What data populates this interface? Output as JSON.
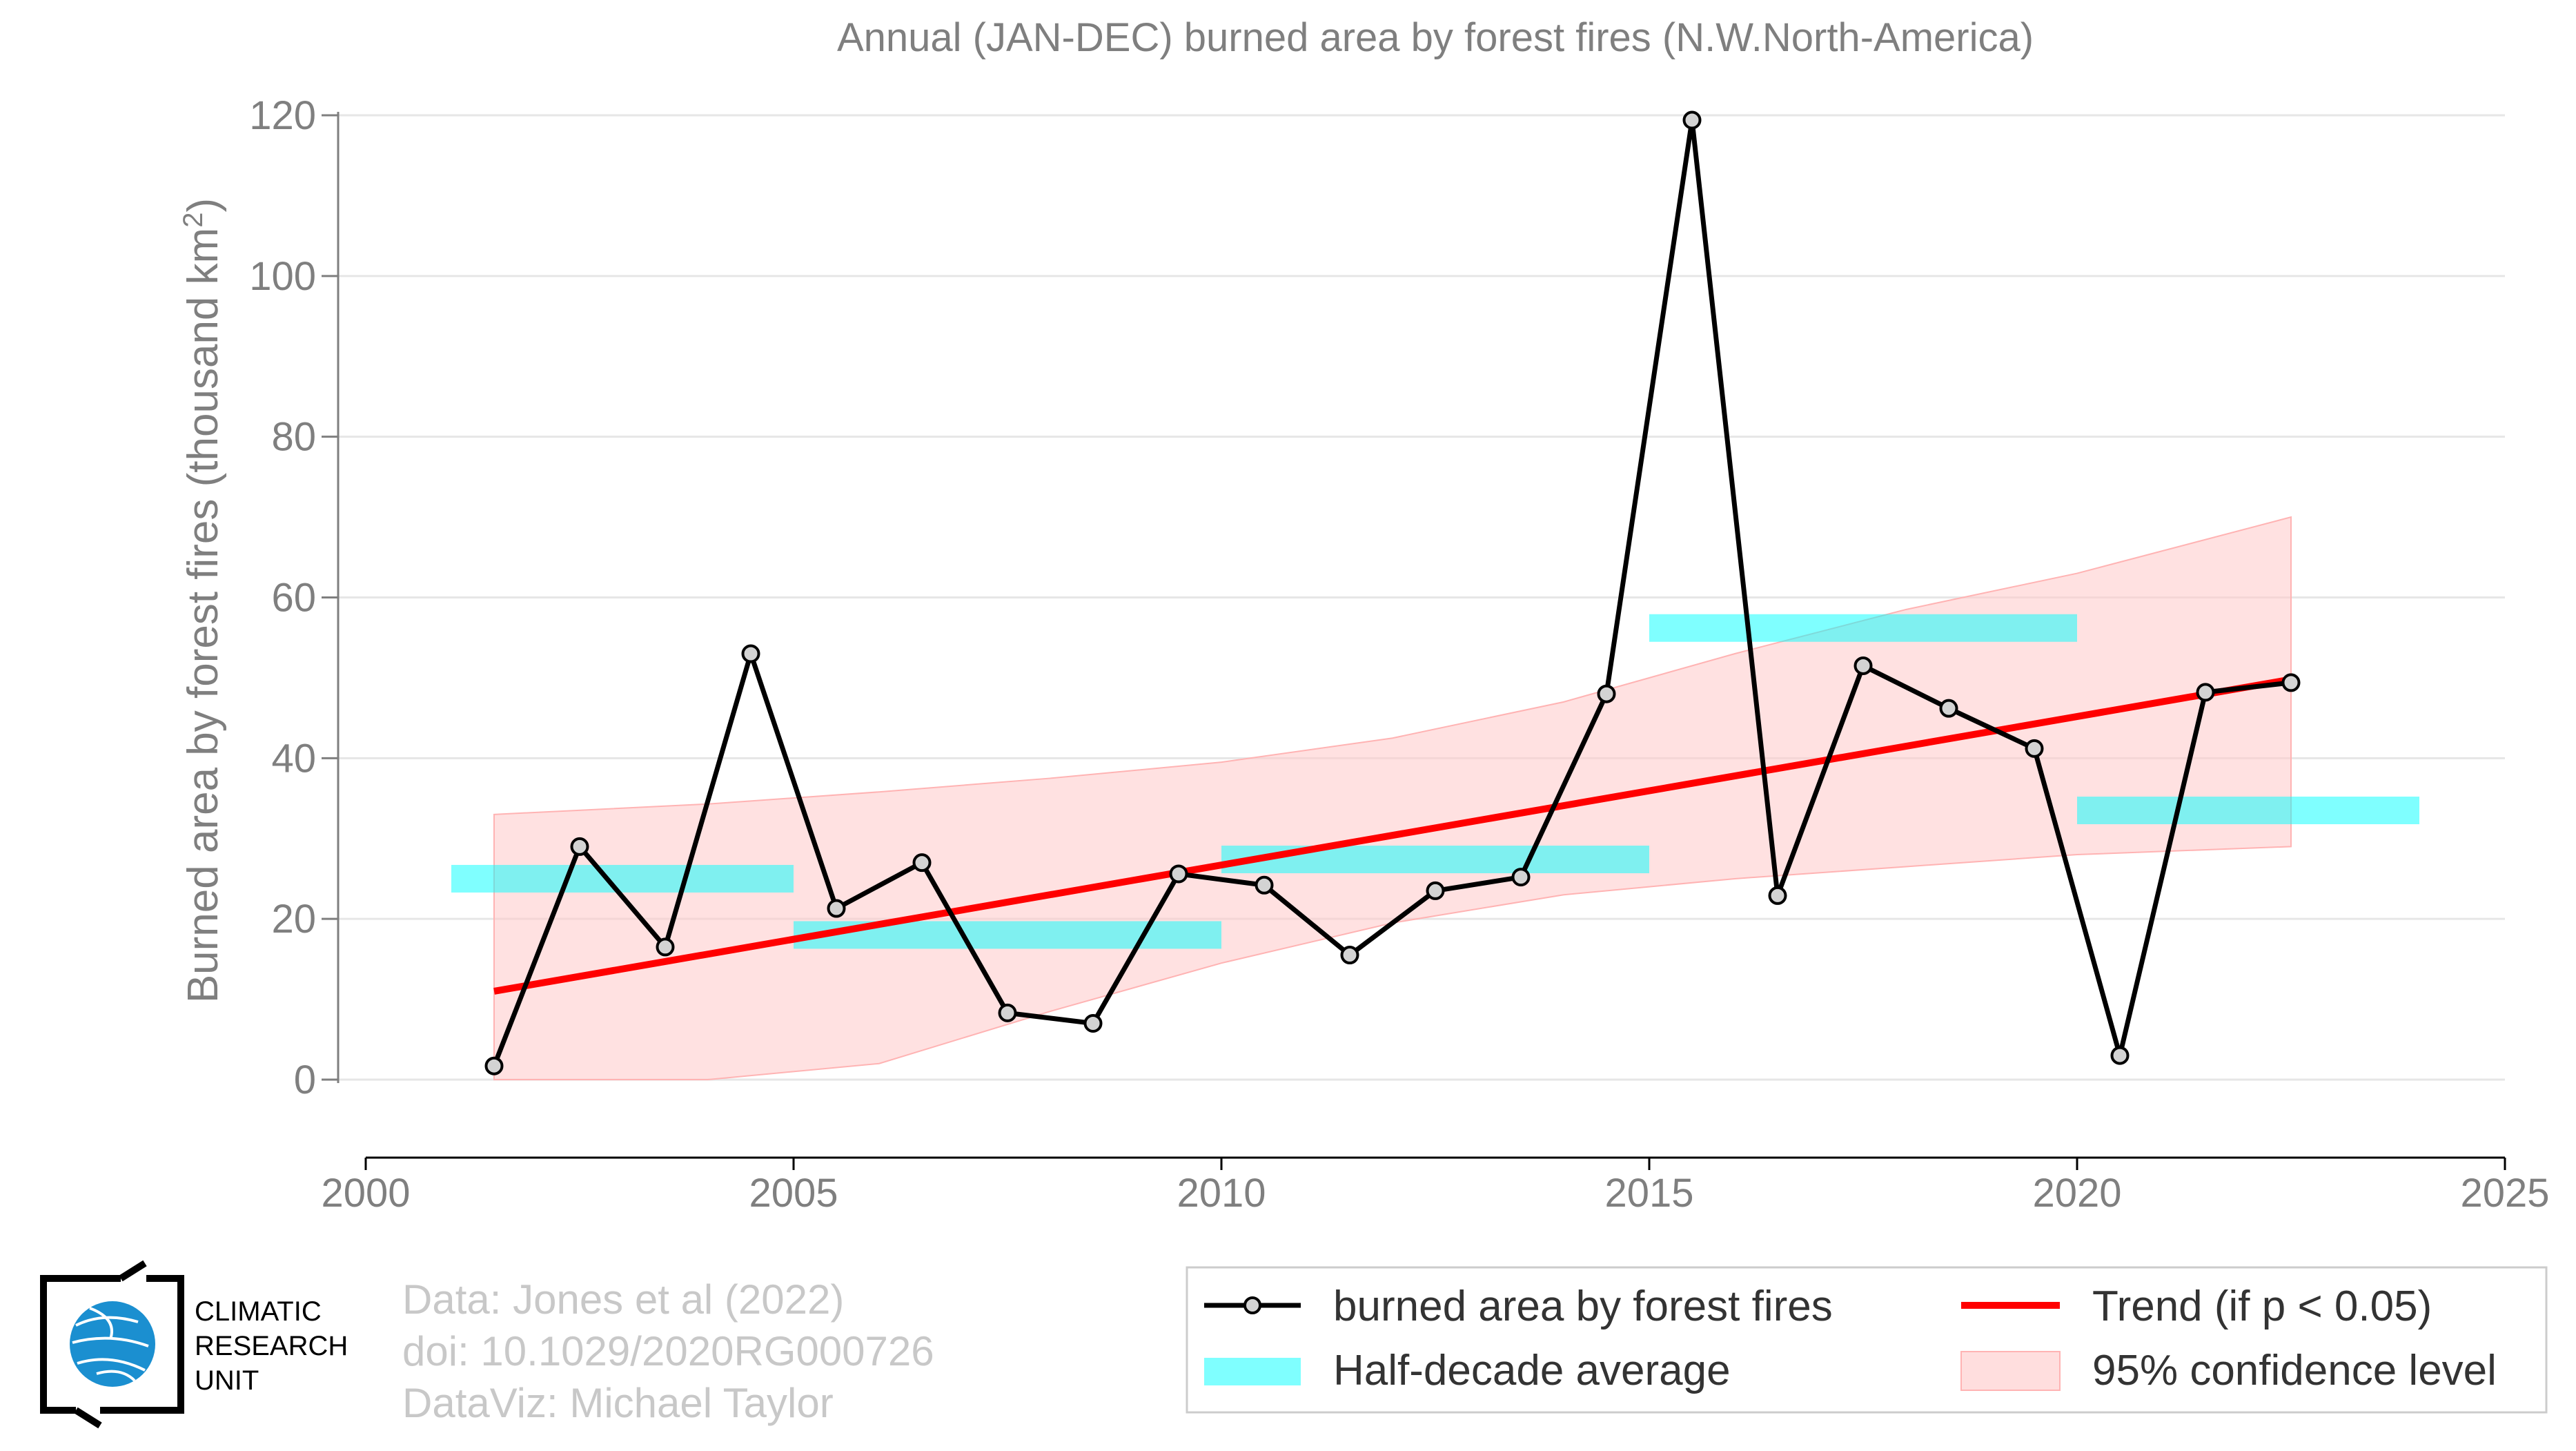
{
  "chart_data": {
    "type": "line",
    "title": "Annual (JAN-DEC) burned area by forest fires (N.W.North-America)",
    "ylabel": "Burned area by forest fires (thousand km",
    "ylabel_sup": "2",
    "ylabel_close": ")",
    "xlim": [
      2000,
      2025
    ],
    "ylim": [
      0,
      120
    ],
    "x_ticks": [
      2000,
      2005,
      2010,
      2015,
      2020,
      2025
    ],
    "y_ticks": [
      0,
      20,
      40,
      60,
      80,
      100,
      120
    ],
    "grid": "horizontal",
    "legend_placement": "bottom-right",
    "series": [
      {
        "name": "burned area by forest fires",
        "color": "#000000",
        "x": [
          2001.5,
          2002.5,
          2003.5,
          2004.5,
          2005.5,
          2006.5,
          2007.5,
          2008.5,
          2009.5,
          2010.5,
          2011.5,
          2012.5,
          2013.5,
          2014.5,
          2015.5,
          2016.5,
          2017.5,
          2018.5,
          2019.5,
          2020.5,
          2021.5,
          2022.5
        ],
        "values": [
          1.7,
          29.0,
          16.5,
          53.0,
          21.3,
          27.0,
          8.3,
          7.0,
          25.6,
          24.2,
          15.5,
          23.5,
          25.2,
          48.0,
          119.4,
          22.9,
          51.5,
          46.2,
          41.2,
          3.0,
          48.2,
          49.4
        ]
      },
      {
        "name": "Trend (if p < 0.05)",
        "color": "#ff0000",
        "x": [
          2001.5,
          2022.5
        ],
        "values": [
          11.0,
          49.8
        ]
      }
    ],
    "half_decade_average": {
      "name": "Half-decade average",
      "color": "#00ffff",
      "segments": [
        {
          "x_start": 2001,
          "x_end": 2005,
          "value": 25.0
        },
        {
          "x_start": 2005,
          "x_end": 2010,
          "value": 18.0
        },
        {
          "x_start": 2010,
          "x_end": 2015,
          "value": 27.4
        },
        {
          "x_start": 2015,
          "x_end": 2020,
          "value": 56.2
        },
        {
          "x_start": 2020,
          "x_end": 2024,
          "value": 33.5
        }
      ]
    },
    "confidence_band": {
      "name": "95% confidence level",
      "color": "#ffc8c8",
      "x": [
        2001.5,
        2004,
        2006,
        2008,
        2010,
        2012,
        2014,
        2016,
        2018,
        2020,
        2022.5
      ],
      "lower": [
        0.0,
        0.0,
        2.0,
        8.5,
        14.5,
        19.5,
        23.0,
        25.0,
        26.5,
        28.0,
        29.0
      ],
      "upper": [
        33.0,
        34.3,
        35.8,
        37.5,
        39.5,
        42.5,
        47.0,
        53.0,
        58.5,
        63.0,
        70.0
      ]
    },
    "legend": [
      {
        "label": "burned area by forest fires",
        "type": "line-marker",
        "color": "#000000"
      },
      {
        "label": "Trend (if p < 0.05)",
        "type": "line",
        "color": "#ff0000"
      },
      {
        "label": "Half-decade average",
        "type": "band",
        "color": "#00ffff"
      },
      {
        "label": "95% confidence level",
        "type": "patch",
        "color": "#ffc8c8"
      }
    ]
  },
  "credits": {
    "line1": "Data: Jones et al (2022)",
    "line2": "doi: 10.1029/2020RG000726",
    "line3": "DataViz: Michael Taylor"
  },
  "logo": {
    "line1": "CLIMATIC",
    "line2": "RESEARCH",
    "line3": "UNIT",
    "color": "#1b8fd0"
  }
}
